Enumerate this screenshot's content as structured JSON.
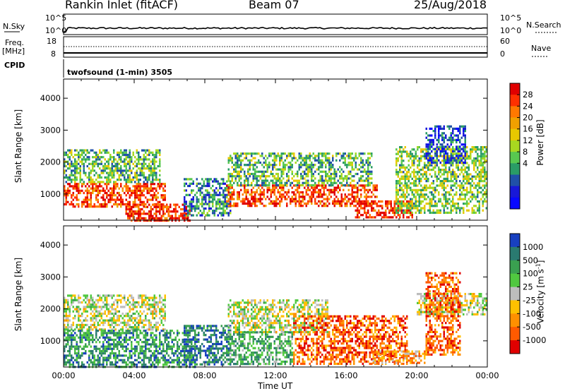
{
  "header": {
    "station": "Rankin Inlet (fitACF)",
    "beam": "Beam 07",
    "date": "25/Aug/2018"
  },
  "status_panels": {
    "nsky_label": "N.Sky",
    "nsky_ticks": [
      "10^5",
      "10^0"
    ],
    "nsearch_label": "N.Search",
    "nsearch_ticks": [
      "10^5",
      "10^0"
    ],
    "freq_label": "Freq.",
    "freq_unit": "[MHz]",
    "freq_ticks": [
      "18",
      "8"
    ],
    "nave_label": "Nave",
    "nave_ticks": [
      "60",
      "0"
    ],
    "cpid_label": "CPID",
    "cpid_value": "twofsound (1-min) 3505"
  },
  "chart_data": [
    {
      "type": "heatmap",
      "name": "power",
      "ylabel": "Slant Range [km]",
      "xlabel": "",
      "x_ticks": [
        "00:00",
        "04:00",
        "08:00",
        "12:00",
        "16:00",
        "20:00",
        "00:00"
      ],
      "xlim_hours": [
        0,
        24
      ],
      "y_ticks": [
        1000,
        2000,
        3000,
        4000
      ],
      "ylim_km": [
        180,
        4600
      ],
      "colorbar_label": "Power [dB]",
      "colorbar_ticks": [
        "28",
        "24",
        "20",
        "16",
        "12",
        "8",
        "4"
      ],
      "colorbar_colors": [
        "#e00000",
        "#ff3000",
        "#ff7800",
        "#f0a000",
        "#e8c800",
        "#a8d820",
        "#58c850",
        "#2a9c66",
        "#2050a8",
        "#1818d8",
        "#0808ff"
      ],
      "regions": [
        {
          "t0": 0.0,
          "t1": 5.8,
          "r0": 620,
          "r1": 1350,
          "level": 0.85
        },
        {
          "t0": 0.0,
          "t1": 5.5,
          "r0": 1350,
          "r1": 2400,
          "level": 0.4
        },
        {
          "t0": 3.5,
          "t1": 7.2,
          "r0": 200,
          "r1": 700,
          "level": 0.9
        },
        {
          "t0": 6.8,
          "t1": 9.5,
          "r0": 300,
          "r1": 1500,
          "level": 0.3
        },
        {
          "t0": 9.2,
          "t1": 17.8,
          "r0": 650,
          "r1": 1300,
          "level": 0.85
        },
        {
          "t0": 9.3,
          "t1": 17.5,
          "r0": 1300,
          "r1": 2300,
          "level": 0.4
        },
        {
          "t0": 16.5,
          "t1": 19.8,
          "r0": 300,
          "r1": 800,
          "level": 0.9
        },
        {
          "t0": 18.8,
          "t1": 24.0,
          "r0": 400,
          "r1": 2500,
          "level": 0.45
        },
        {
          "t0": 20.5,
          "t1": 22.8,
          "r0": 2000,
          "r1": 3150,
          "level": 0.2
        }
      ]
    },
    {
      "type": "heatmap",
      "name": "velocity",
      "ylabel": "Slant Range [km]",
      "xlabel": "Time UT",
      "x_ticks": [
        "00:00",
        "04:00",
        "08:00",
        "12:00",
        "16:00",
        "20:00",
        "00:00"
      ],
      "xlim_hours": [
        0,
        24
      ],
      "y_ticks": [
        1000,
        2000,
        3000,
        4000
      ],
      "ylim_km": [
        180,
        4600
      ],
      "colorbar_label": "Velocity [m s",
      "colorbar_label_sup": "-1",
      "colorbar_label_end": "]",
      "colorbar_ticks": [
        "1000",
        "500",
        "100",
        "25",
        "-25",
        "-100",
        "-500",
        "-1000"
      ],
      "colorbar_colors": [
        "#1840c0",
        "#2a7a70",
        "#3aa050",
        "#50c840",
        "#bdbdbd",
        "#ffc000",
        "#ff9000",
        "#ff5a00",
        "#e00000"
      ],
      "regions": [
        {
          "t0": 0.0,
          "t1": 5.8,
          "r0": 1350,
          "r1": 2450,
          "level": 0.5
        },
        {
          "t0": 0.0,
          "t1": 7.5,
          "r0": 200,
          "r1": 1350,
          "level": 0.25
        },
        {
          "t0": 6.8,
          "t1": 9.5,
          "r0": 250,
          "r1": 1500,
          "level": 0.15
        },
        {
          "t0": 9.2,
          "t1": 13.0,
          "r0": 300,
          "r1": 1300,
          "level": 0.3
        },
        {
          "t0": 9.3,
          "t1": 15.0,
          "r0": 1300,
          "r1": 2300,
          "level": 0.5
        },
        {
          "t0": 13.0,
          "t1": 19.5,
          "r0": 300,
          "r1": 1800,
          "level": 0.82
        },
        {
          "t0": 17.5,
          "t1": 20.5,
          "r0": 300,
          "r1": 700,
          "level": 0.7
        },
        {
          "t0": 20.0,
          "t1": 24.0,
          "r0": 1800,
          "r1": 2500,
          "level": 0.5
        },
        {
          "t0": 20.5,
          "t1": 22.5,
          "r0": 600,
          "r1": 3150,
          "level": 0.82
        }
      ]
    }
  ]
}
